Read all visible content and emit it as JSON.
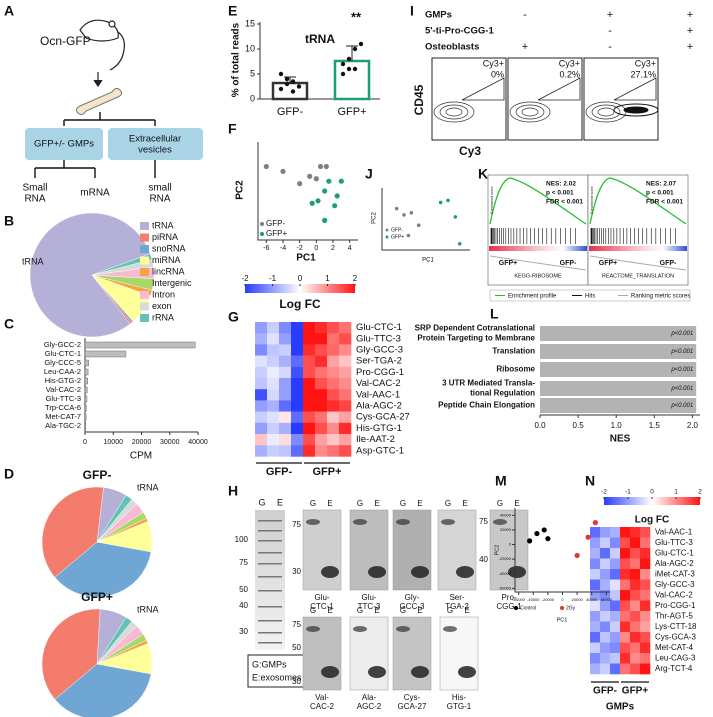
{
  "panel_labels": [
    "A",
    "B",
    "C",
    "D",
    "E",
    "F",
    "G",
    "H",
    "I",
    "J",
    "K",
    "L",
    "M",
    "N"
  ],
  "panel_a": {
    "title": "Ocn-GFP",
    "boxes": [
      [
        "GFP+/- GMPs"
      ],
      [
        "Extracellular",
        "vesicles"
      ]
    ],
    "outputs": [
      [
        "Small",
        "RNA"
      ],
      [
        "mRNA"
      ],
      [
        "small",
        "RNA"
      ]
    ]
  },
  "panel_b": {
    "type": "pie",
    "label": "tRNA",
    "categories": [
      "tRNA",
      "piRNA",
      "snoRNA",
      "miRNA",
      "lincRNA",
      "Intergenic",
      "Intron",
      "exon",
      "rRNA"
    ],
    "values": [
      80,
      0.5,
      0.5,
      8,
      1.5,
      3,
      3,
      2,
      1.5
    ],
    "colors": [
      "#b5b0d8",
      "#f47c6c",
      "#6fa6d3",
      "#ffff99",
      "#f4a442",
      "#a6d96a",
      "#f9b8d4",
      "#d9d9d9",
      "#5fc3b5"
    ]
  },
  "panel_c": {
    "type": "bar",
    "categories": [
      "Gly-GCC-2",
      "Glu-CTC-1",
      "Gly-CCC-5",
      "Leu-CAA-2",
      "His-GTG-2",
      "Val-CAC-2",
      "Glu-TTC-3",
      "Trp-CCA-6",
      "Met-CAT-7",
      "Ala-TGC-2"
    ],
    "values": [
      39000,
      14500,
      1300,
      1100,
      950,
      800,
      700,
      500,
      400,
      300
    ],
    "color": "#bdbdbd",
    "xlim": [
      0,
      40000
    ],
    "xticks": [
      0,
      10000,
      20000,
      30000,
      40000
    ],
    "xlabel": "CPM"
  },
  "panel_d": {
    "charts": [
      {
        "type": "pie",
        "title": "GFP-",
        "label": "tRNA",
        "values": [
          7,
          38,
          36,
          9,
          1,
          2,
          3,
          2,
          2
        ]
      },
      {
        "type": "pie",
        "title": "GFP+",
        "label": "tRNA",
        "values": [
          8,
          37,
          36,
          9,
          1,
          2,
          3,
          2,
          2
        ]
      }
    ]
  },
  "panel_e": {
    "type": "bar",
    "title": "tRNA",
    "ylabel": "% of total reads",
    "categories": [
      "GFP-",
      "GFP+"
    ],
    "values": [
      3.2,
      7.6
    ],
    "errors": [
      1.2,
      3
    ],
    "points": [
      [
        2,
        3,
        3.5,
        2.5,
        5,
        4,
        1.5
      ],
      [
        5,
        6,
        10,
        11,
        7,
        8,
        6
      ]
    ],
    "colors": [
      "#333333",
      "#1f9e76"
    ],
    "annotation": "**",
    "ylim": [
      0,
      15
    ],
    "yticks": [
      0,
      5,
      10,
      15
    ]
  },
  "panel_f": {
    "type": "scatter",
    "xlabel": "PC1",
    "ylabel": "PC2",
    "xlim": [
      -7,
      5
    ],
    "ylim": [
      -2,
      2
    ],
    "xticks": [
      -6,
      -4,
      -2,
      0,
      2,
      4
    ],
    "series": [
      {
        "name": "GFP-",
        "color": "#808080",
        "x": [
          -6,
          -4,
          -2,
          -0.8,
          0,
          0.5,
          1.2
        ],
        "y": [
          1,
          0.8,
          0.3,
          0.6,
          0.5,
          1,
          1
        ]
      },
      {
        "name": "GFP+",
        "color": "#1f9e76",
        "x": [
          -0.5,
          0.2,
          1,
          1.5,
          2.2,
          3,
          1,
          2.5
        ],
        "y": [
          -0.5,
          -0.4,
          0,
          0.4,
          -0.6,
          0.4,
          -1.2,
          -0.2
        ]
      }
    ]
  },
  "panel_g": {
    "type": "heatmap",
    "colorbar_label": "Log FC",
    "colorbar_ticks": [
      -2,
      -1,
      0,
      1,
      2
    ],
    "zlim": [
      -2,
      2
    ],
    "groups": [
      "GFP-",
      "GFP+"
    ],
    "rows": [
      "Glu-CTC-1",
      "Glu-TTC-3",
      "Gly-GCC-3",
      "Ser-TGA-2",
      "Pro-CGG-1",
      "Val-CAC-2",
      "Val-AAC-1",
      "Ala-AGC-2",
      "Cys-GCA-27",
      "His-GTG-1",
      "Ile-AAT-2",
      "Asp-GTC-1"
    ],
    "values": [
      [
        -1,
        -0.5,
        -1.2,
        -2,
        2,
        1.8,
        1.5,
        1.2
      ],
      [
        -0.8,
        -0.3,
        -1,
        -2,
        2,
        2,
        1.2,
        1.5
      ],
      [
        -1.2,
        -0.6,
        -0.5,
        -2,
        1.8,
        1.5,
        1.3,
        1
      ],
      [
        -0.3,
        -0.5,
        -0.8,
        -1.5,
        1.5,
        1.8,
        0.8,
        0.5
      ],
      [
        -0.5,
        -0.2,
        -0.4,
        -1.8,
        1.5,
        1.2,
        1,
        0.8
      ],
      [
        -0.6,
        -0.3,
        -1,
        -2,
        2,
        1.5,
        1.2,
        1
      ],
      [
        -1.8,
        -0.4,
        -1,
        -2,
        2,
        2,
        1.5,
        1.2
      ],
      [
        -1,
        -0.8,
        -1.5,
        -2,
        2,
        2,
        1.8,
        1.6
      ],
      [
        -0.5,
        -0.3,
        0.2,
        -1.5,
        1.5,
        1.2,
        0.5,
        0.8
      ],
      [
        -1,
        -0.5,
        -0.8,
        -2,
        2,
        1.5,
        1,
        1.8
      ],
      [
        0.5,
        -0.2,
        0.3,
        -1.2,
        1.5,
        0.8,
        0.5,
        0.8
      ],
      [
        -0.8,
        -0.5,
        -0.6,
        -1.5,
        1.8,
        1,
        1.2,
        1.5
      ]
    ]
  },
  "panel_h": {
    "ladder_lanes": [
      "G",
      "E"
    ],
    "ladder_marks": [
      100,
      75,
      50,
      40,
      30
    ],
    "blots": [
      {
        "label": [
          "Glu-",
          "CTC-1"
        ],
        "lanes": [
          "G",
          "E"
        ],
        "marks": [
          75,
          30
        ]
      },
      {
        "label": [
          "Glu-",
          "TTC-3"
        ],
        "lanes": [
          "G",
          "E"
        ],
        "marks": []
      },
      {
        "label": [
          "Gly-",
          "GCC-3"
        ],
        "lanes": [
          "G",
          "E"
        ],
        "marks": []
      },
      {
        "label": [
          "Ser-",
          "TGA-2"
        ],
        "lanes": [
          "G",
          "E"
        ],
        "marks": []
      },
      {
        "label": [
          "Pro-",
          "CGG-1"
        ],
        "lanes": [
          "G",
          "E"
        ],
        "marks": [
          75,
          40
        ]
      },
      {
        "label": [
          "Val-",
          "CAC-2"
        ],
        "lanes": [
          "G",
          "E"
        ],
        "marks": [
          75,
          50,
          30
        ]
      },
      {
        "label": [
          "Ala-",
          "AGC-2"
        ],
        "lanes": [
          "G",
          "E"
        ],
        "marks": []
      },
      {
        "label": [
          "Cys-",
          "GCA-27"
        ],
        "lanes": [
          "G",
          "E"
        ],
        "marks": []
      },
      {
        "label": [
          "His-",
          "GTG-1"
        ],
        "lanes": [
          "G",
          "E"
        ],
        "marks": []
      }
    ],
    "legend": [
      "G:GMPs",
      "E:exosomes"
    ]
  },
  "panel_i": {
    "conditions": [
      {
        "label": "GMPs",
        "marks": [
          "-",
          "+",
          "+"
        ]
      },
      {
        "label": "5'-ti-Pro-CGG-1",
        "marks": [
          null,
          "-",
          "+"
        ]
      },
      {
        "label": "Osteoblasts",
        "marks": [
          "+",
          "-",
          "+"
        ]
      }
    ],
    "gate_label": "Cy3+",
    "percent_labels": [
      "0%",
      "0.2%",
      "27.1%"
    ],
    "xlabel": "Cy3",
    "ylabel": "CD45"
  },
  "panel_j": {
    "type": "scatter",
    "xlabel": "PC1",
    "ylabel": "PC2",
    "xlim": [
      -3,
      3
    ],
    "ylim": [
      -1.5,
      1.5
    ],
    "series": [
      {
        "name": "GFP-",
        "color": "#808080",
        "x": [
          -2,
          -1.5,
          -1,
          -0.5,
          -1.2
        ],
        "y": [
          0.5,
          0.2,
          0.3,
          -0.3,
          -0.8
        ]
      },
      {
        "name": "GFP+",
        "color": "#1f9e76",
        "x": [
          1,
          1.5,
          2,
          2.3
        ],
        "y": [
          0.8,
          0.9,
          0.1,
          -1.2
        ]
      }
    ]
  },
  "panel_k": {
    "ylabel": "Enrichment score",
    "plots": [
      {
        "stats": [
          "NES: 2.02",
          "p < 0.001",
          "FDR < 0.001"
        ],
        "gene_set": "KEGG-RIBOSOME",
        "ends": [
          "GFP+",
          "GFP-"
        ]
      },
      {
        "stats": [
          "NES: 2.07",
          "p < 0.001",
          "FDR < 0.001"
        ],
        "gene_set": "REACTOME_TRANSLATION",
        "ends": [
          "GFP+",
          "GFP-"
        ]
      }
    ],
    "legend": [
      "Enrichment profile",
      "Hits",
      "Ranking metric scores"
    ]
  },
  "panel_l": {
    "type": "bar",
    "categories": [
      [
        "SRP Dependent Cotranslational",
        "Protein Targeting to Membrane"
      ],
      [
        "Translation"
      ],
      [
        "Ribosome"
      ],
      [
        "3 UTR Mediated Transla-",
        "tional Regulation"
      ],
      [
        "Peptide Chain Elongation"
      ]
    ],
    "values": [
      2.05,
      2.05,
      2.05,
      2.05,
      2.05
    ],
    "p_labels": [
      "p<0.001",
      "p<0.001",
      "p<0.001",
      "p<0.001",
      "p<0.001"
    ],
    "color": "#b3b3b3",
    "xlim": [
      0,
      2.1
    ],
    "xticks": [
      {
        "value": 0,
        "label": "0.0"
      },
      {
        "value": 0.5,
        "label": "0.5"
      },
      {
        "value": 1,
        "label": "1.0"
      },
      {
        "value": 1.5,
        "label": "1.5"
      },
      {
        "value": 2,
        "label": "2.0"
      }
    ],
    "xlabel": "NES"
  },
  "panel_m": {
    "type": "scatter",
    "xlabel": "PC1",
    "ylabel": "PC2",
    "xlim": [
      -65000,
      65000
    ],
    "ylim": [
      -65000,
      50000
    ],
    "xticks": [
      -60000,
      -40000,
      -20000,
      0,
      20000,
      40000,
      60000
    ],
    "yticks": [
      -60000,
      -40000,
      -20000,
      0,
      20000,
      40000
    ],
    "series": [
      {
        "name": "Control",
        "color": "#000000",
        "x": [
          -45000,
          -35000,
          -25000,
          -20000
        ],
        "y": [
          5000,
          15000,
          20000,
          8000
        ]
      },
      {
        "name": "2Gy",
        "color": "#e03a2e",
        "x": [
          20000,
          35000,
          45000
        ],
        "y": [
          -15000,
          10000,
          30000
        ]
      }
    ]
  },
  "panel_n": {
    "type": "heatmap",
    "colorbar_label": "Log FC",
    "colorbar_ticks": [
      -2,
      -1,
      0,
      1,
      2
    ],
    "zlim": [
      -2,
      2
    ],
    "groups": [
      "GFP-",
      "GFP+"
    ],
    "group_label": "GMPs",
    "rows": [
      "Val-AAC-1",
      "Glu-TTC-3",
      "Glu-CTC-1",
      "Ala-AGC-2",
      "iMet-CAT-3",
      "Gly-GCC-3",
      "Val-CAC-2",
      "Pro-CGG-1",
      "Thr-AGT-5",
      "Lys-CTT-18",
      "Cys-GCA-3",
      "Met-CAT-4",
      "Leu-CAG-3",
      "Arg-TCT-4"
    ],
    "values": [
      [
        -1.5,
        -1,
        -0.8,
        2,
        1.8,
        1.5
      ],
      [
        -1,
        -0.5,
        -1.2,
        1.5,
        2,
        1.2
      ],
      [
        -0.8,
        -1.5,
        -0.5,
        2,
        1.5,
        1.8
      ],
      [
        -1.2,
        -0.5,
        -1,
        1.5,
        1.2,
        2
      ],
      [
        -0.5,
        -1,
        -1.5,
        1.8,
        2,
        1
      ],
      [
        -1.5,
        -0.8,
        -0.3,
        1.2,
        1.8,
        1.5
      ],
      [
        -1,
        -1.2,
        -0.6,
        2,
        1.5,
        1.2
      ],
      [
        -0.3,
        -1,
        -1.5,
        1.5,
        1,
        1.8
      ],
      [
        -1,
        -0.5,
        -0.8,
        1.2,
        1.5,
        1
      ],
      [
        -0.8,
        -1.2,
        -0.5,
        1.8,
        1.2,
        0.8
      ],
      [
        -1.5,
        -0.6,
        -1,
        1,
        1.8,
        1.5
      ],
      [
        -0.5,
        -1,
        -1.2,
        1.5,
        1.2,
        1.8
      ],
      [
        -1.2,
        -0.8,
        -0.6,
        1.8,
        1,
        1.2
      ],
      [
        -0.8,
        -0.5,
        -1.5,
        1.2,
        1.5,
        2
      ]
    ]
  }
}
